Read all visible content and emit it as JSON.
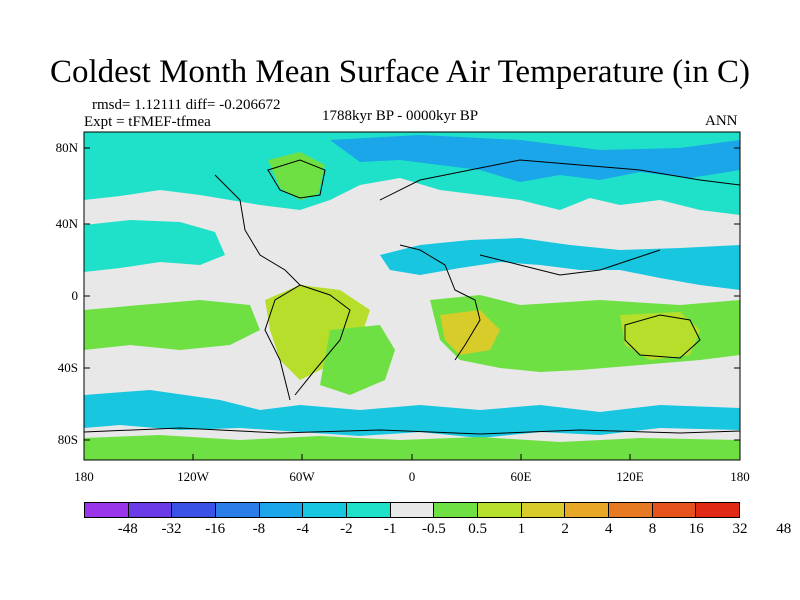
{
  "title": "Coldest Month Mean Surface Air Temperature (in C)",
  "stats": {
    "rmsd_diff": "rmsd= 1.12111 diff= -0.206672",
    "expt": "Expt = tFMEF-tfmea",
    "period": "1788kyr BP - 0000kyr BP",
    "season": "ANN"
  },
  "map": {
    "lat_labels": [
      "80N",
      "40N",
      "0",
      "40S",
      "80S"
    ],
    "lon_labels": [
      "180",
      "120W",
      "60W",
      "0",
      "60E",
      "120E",
      "180"
    ],
    "fill_colors": {
      "neutral": "#e8e8e8",
      "light_cyan": "#1fe0c8",
      "cyan": "#18c6e0",
      "blue": "#1aa6e8",
      "green": "#6ee043",
      "yellow_green": "#b8de2c",
      "olive": "#d8cc2a"
    }
  },
  "colorbar": {
    "colors": [
      "#9a36ea",
      "#6c3be8",
      "#3a52e6",
      "#2b7de8",
      "#1aa6e8",
      "#18c6e0",
      "#1fe0c8",
      "#e8e8e8",
      "#6ee043",
      "#b8de2c",
      "#d8cc2a",
      "#e6a826",
      "#e67a22",
      "#e6521e",
      "#e02a16"
    ],
    "labels": [
      "-48",
      "-32",
      "-16",
      "-8",
      "-4",
      "-2",
      "-1",
      "-0.5",
      "0.5",
      "1",
      "2",
      "4",
      "8",
      "16",
      "32",
      "48"
    ]
  }
}
